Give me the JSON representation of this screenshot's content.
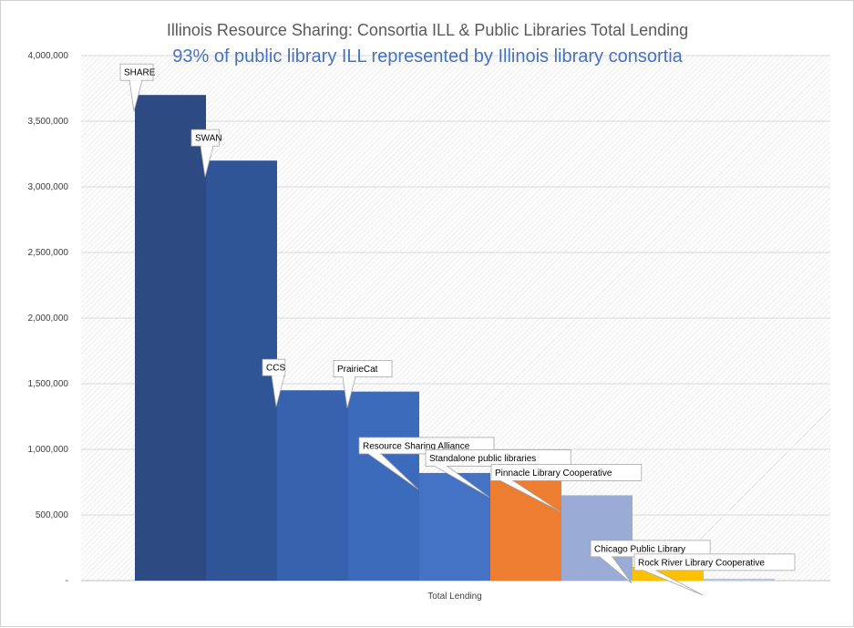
{
  "chart_data": {
    "type": "bar",
    "title": "Illinois Resource Sharing: Consortia ILL & Public Libraries Total Lending",
    "subtitle": "93% of public library ILL represented by Illinois library consortia",
    "categories": [
      "Total Lending"
    ],
    "ylim": [
      0,
      4000000
    ],
    "yticks": [
      0,
      500000,
      1000000,
      1500000,
      2000000,
      2500000,
      3000000,
      3500000,
      4000000
    ],
    "ytick_labels": [
      "-",
      "500,000",
      "1,000,000",
      "1,500,000",
      "2,000,000",
      "2,500,000",
      "3,000,000",
      "3,500,000",
      "4,000,000"
    ],
    "grid": true,
    "legend": "none",
    "series": [
      {
        "name": "SHARE",
        "values": [
          3700000
        ],
        "color": "#2e4a82"
      },
      {
        "name": "SWAN",
        "values": [
          3200000
        ],
        "color": "#2f5597"
      },
      {
        "name": "CCS",
        "values": [
          1450000
        ],
        "color": "#3762ad"
      },
      {
        "name": "PrairieCat",
        "values": [
          1440000
        ],
        "color": "#3d6bbb"
      },
      {
        "name": "Resource Sharing Alliance",
        "values": [
          820000
        ],
        "color": "#4472c4"
      },
      {
        "name": "Standalone public libraries",
        "values": [
          760000
        ],
        "color": "#ed7d31"
      },
      {
        "name": "Pinnacle Library Cooperative",
        "values": [
          650000
        ],
        "color": "#9aacd6"
      },
      {
        "name": "Chicago Public Library",
        "values": [
          105000
        ],
        "color": "#ffc000"
      },
      {
        "name": "Rock River Library Cooperative",
        "values": [
          15000
        ],
        "color": "#b4c6e7"
      }
    ]
  }
}
